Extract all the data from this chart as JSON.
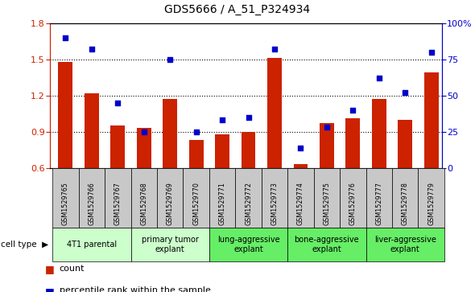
{
  "title": "GDS5666 / A_51_P324934",
  "samples": [
    "GSM1529765",
    "GSM1529766",
    "GSM1529767",
    "GSM1529768",
    "GSM1529769",
    "GSM1529770",
    "GSM1529771",
    "GSM1529772",
    "GSM1529773",
    "GSM1529774",
    "GSM1529775",
    "GSM1529776",
    "GSM1529777",
    "GSM1529778",
    "GSM1529779"
  ],
  "bar_values": [
    1.48,
    1.22,
    0.95,
    0.93,
    1.17,
    0.83,
    0.88,
    0.9,
    1.51,
    0.63,
    0.97,
    1.01,
    1.17,
    1.0,
    1.39
  ],
  "dot_values": [
    90,
    82,
    45,
    25,
    75,
    25,
    33,
    35,
    82,
    14,
    28,
    40,
    62,
    52,
    80
  ],
  "bar_color": "#cc2200",
  "dot_color": "#0000cc",
  "ylim_left": [
    0.6,
    1.8
  ],
  "ylim_right": [
    0,
    100
  ],
  "yticks_left": [
    0.6,
    0.9,
    1.2,
    1.5,
    1.8
  ],
  "yticks_right": [
    0,
    25,
    50,
    75,
    100
  ],
  "cell_groups": [
    {
      "label": "4T1 parental",
      "start": 0,
      "end": 2,
      "color": "#ccffcc"
    },
    {
      "label": "primary tumor\nexplant",
      "start": 3,
      "end": 5,
      "color": "#ccffcc"
    },
    {
      "label": "lung-aggressive\nexplant",
      "start": 6,
      "end": 8,
      "color": "#66ee66"
    },
    {
      "label": "bone-aggressive\nexplant",
      "start": 9,
      "end": 11,
      "color": "#66ee66"
    },
    {
      "label": "liver-aggressive\nexplant",
      "start": 12,
      "end": 14,
      "color": "#66ee66"
    }
  ],
  "cell_type_label": "cell type",
  "legend_count_label": "count",
  "legend_pct_label": "percentile rank within the sample",
  "tick_color_left": "#cc2200",
  "tick_color_right": "#0000cc",
  "sample_row_color": "#c8c8c8",
  "bar_bottom": 0.6,
  "n_samples": 15,
  "xlim": [
    -0.6,
    14.4
  ]
}
